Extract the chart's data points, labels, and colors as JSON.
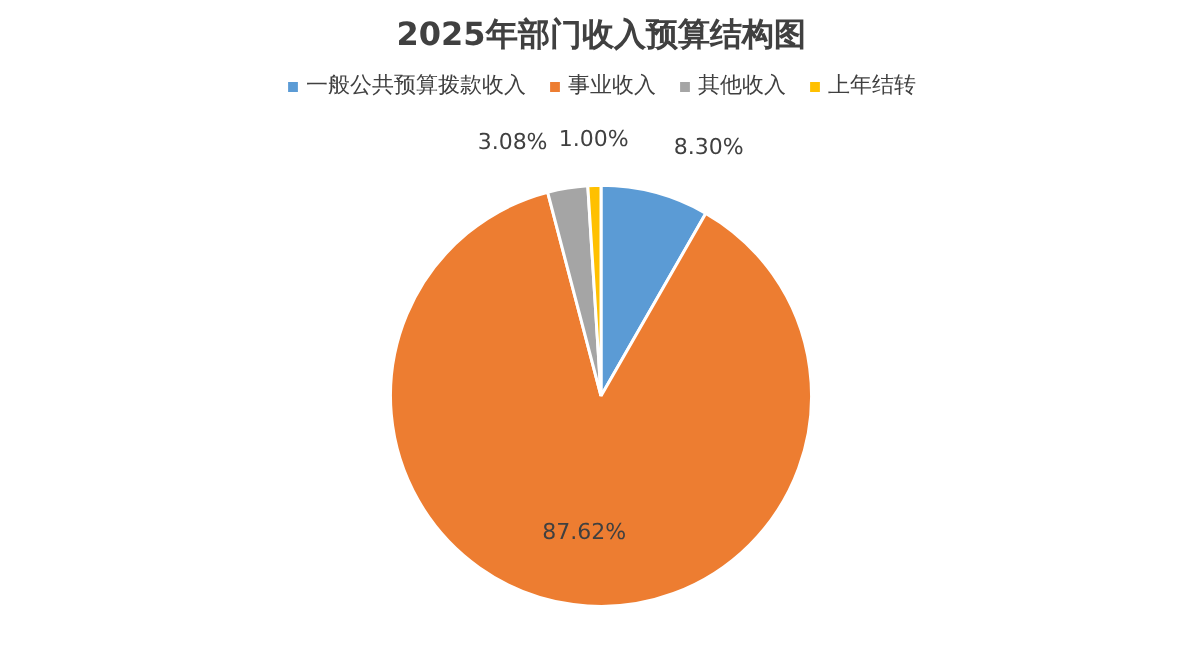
{
  "chart_data": {
    "type": "pie",
    "title": "2025年部门收入预算结构图",
    "categories": [
      "一般公共预算拨款收入",
      "事业收入",
      "其他收入",
      "上年结转"
    ],
    "values": [
      8.3,
      87.62,
      3.08,
      1.0
    ],
    "colors": [
      "#5b9bd5",
      "#ed7d31",
      "#a5a5a5",
      "#ffc000"
    ],
    "value_labels": [
      "8.30%",
      "87.62%",
      "3.08%",
      "1.00%"
    ],
    "legend": "top"
  }
}
